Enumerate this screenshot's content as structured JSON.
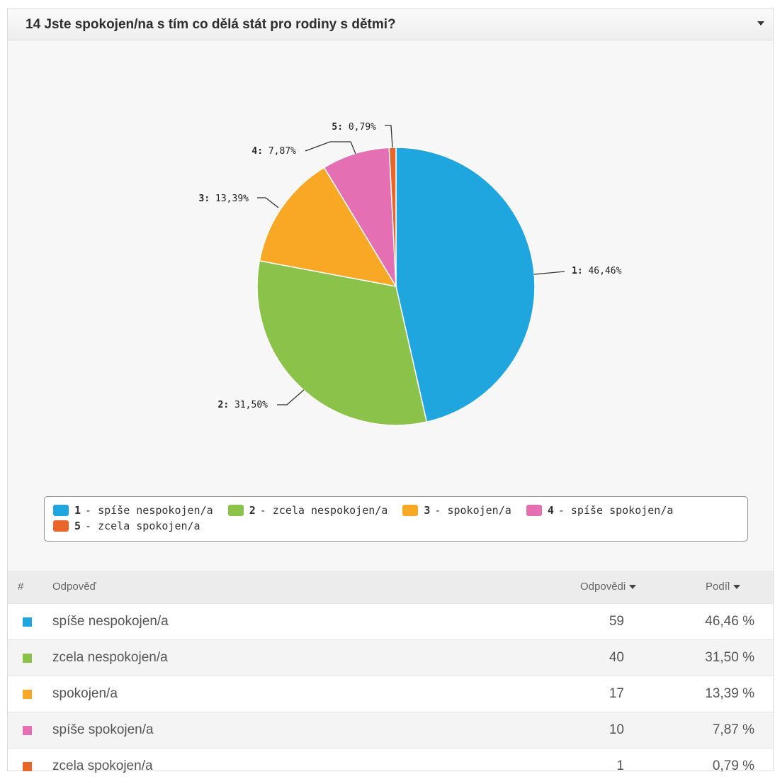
{
  "header": {
    "title": "14 Jste spokojen/na s tím co dělá stát pro rodiny s dětmi?"
  },
  "chart_data": {
    "type": "pie",
    "categories": [
      "1",
      "2",
      "3",
      "4",
      "5"
    ],
    "values": [
      46.46,
      31.5,
      13.39,
      7.87,
      0.79
    ],
    "labels": [
      "1: 46,46%",
      "2: 31,50%",
      "3: 13,39%",
      "4: 7,87%",
      "5: 0,79%"
    ],
    "colors": [
      "#1fa6de",
      "#8bc34a",
      "#f9a825",
      "#e46fb2",
      "#e8662a"
    ],
    "legend_position": "bottom",
    "legend": [
      {
        "num": "1",
        "text": "- spíše nespokojen/a",
        "color": "#1fa6de"
      },
      {
        "num": "2",
        "text": "- zcela nespokojen/a",
        "color": "#8bc34a"
      },
      {
        "num": "3",
        "text": "- spokojen/a",
        "color": "#f9a825"
      },
      {
        "num": "4",
        "text": "- spíše spokojen/a",
        "color": "#e46fb2"
      },
      {
        "num": "5",
        "text": "- zcela spokojen/a",
        "color": "#e8662a"
      }
    ]
  },
  "table": {
    "headers": {
      "hash": "#",
      "answer": "Odpověď",
      "count": "Odpovědi",
      "share": "Podíl"
    },
    "rows": [
      {
        "label": "spíše nespokojen/a",
        "count": "59",
        "share": "46,46 %",
        "color": "#1fa6de"
      },
      {
        "label": "zcela nespokojen/a",
        "count": "40",
        "share": "31,50 %",
        "color": "#8bc34a"
      },
      {
        "label": "spokojen/a",
        "count": "17",
        "share": "13,39 %",
        "color": "#f9a825"
      },
      {
        "label": "spíše spokojen/a",
        "count": "10",
        "share": "7,87 %",
        "color": "#e46fb2"
      },
      {
        "label": "zcela spokojen/a",
        "count": "1",
        "share": "0,79 %",
        "color": "#e8662a"
      }
    ]
  }
}
